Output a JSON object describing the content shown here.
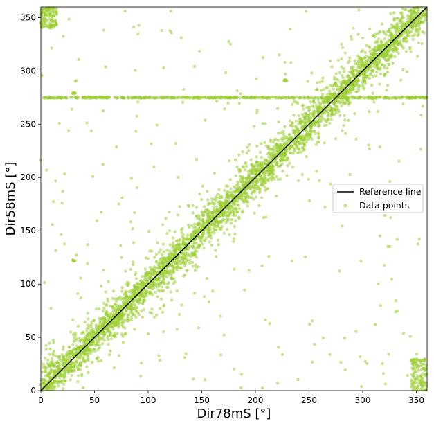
{
  "chart_data": {
    "type": "scatter",
    "title": "",
    "xlabel": "Dir78mS [°]",
    "ylabel": "Dir58mS [°]",
    "xlim": [
      0,
      360
    ],
    "ylim": [
      0,
      360
    ],
    "x_ticks": [
      0,
      50,
      100,
      150,
      200,
      250,
      300,
      350
    ],
    "y_ticks": [
      0,
      50,
      100,
      150,
      200,
      250,
      300,
      350
    ],
    "grid": false,
    "legend_position": "center-right",
    "series": [
      {
        "name": "Reference line",
        "kind": "line",
        "color": "#000000",
        "x": [
          0,
          360
        ],
        "y": [
          0,
          360
        ]
      },
      {
        "name": "Data points",
        "kind": "scatter",
        "color": "#9acd32",
        "main_trend": {
          "x_range": [
            0,
            360
          ],
          "slope": 1.0,
          "intercept": 0,
          "spread": 8
        },
        "horizontal_band": {
          "y": 275,
          "x_range": [
            0,
            360
          ]
        },
        "corner_clusters": [
          {
            "x_range": [
              0,
              15
            ],
            "y_range": [
              340,
              360
            ]
          },
          {
            "x_range": [
              345,
              360
            ],
            "y_range": [
              0,
              30
            ]
          }
        ],
        "small_clusters": [
          {
            "x": 31,
            "y": 279
          },
          {
            "x": 31,
            "y": 122
          },
          {
            "x": 228,
            "y": 291
          }
        ]
      }
    ]
  }
}
